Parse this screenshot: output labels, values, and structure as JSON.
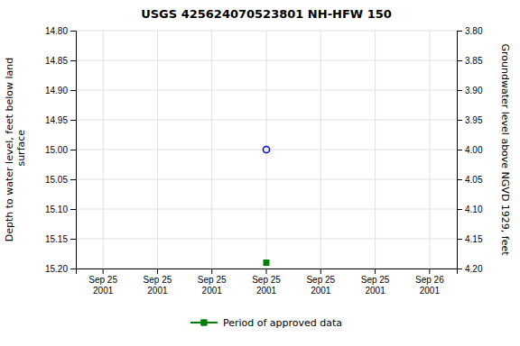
{
  "chart_data": {
    "type": "scatter",
    "title": "USGS 425624070523801 NH-HFW  150",
    "y_label": "Depth to water level, feet below land\n surface",
    "y2_label": "Groundwater level above NGVD 1929, feet",
    "categories": [
      "Sep 25\n2001",
      "Sep 25\n2001",
      "Sep 25\n2001",
      "Sep 25\n2001",
      "Sep 25\n2001",
      "Sep 25\n2001",
      "Sep 26\n2001"
    ],
    "series": [
      {
        "color": "#0000cc",
        "marker": "circle-open",
        "values": [
          null,
          null,
          null,
          15.0,
          null,
          null,
          null
        ]
      },
      {
        "name": "Period of approved data",
        "color": "#008000",
        "marker": "square",
        "values": [
          null,
          null,
          null,
          15.19,
          null,
          null,
          null
        ]
      }
    ],
    "ylim": [
      15.2,
      14.8
    ],
    "yticks": [
      {
        "value": 14.8,
        "label": "14.80"
      },
      {
        "value": 14.85,
        "label": "14.85"
      },
      {
        "value": 14.9,
        "label": "14.90"
      },
      {
        "value": 14.95,
        "label": "14.95"
      },
      {
        "value": 15.0,
        "label": "15.00"
      },
      {
        "value": 15.05,
        "label": "15.05"
      },
      {
        "value": 15.1,
        "label": "15.10"
      },
      {
        "value": 15.15,
        "label": "15.15"
      },
      {
        "value": 15.2,
        "label": "15.20"
      }
    ],
    "y2lim": [
      4.2,
      3.8
    ],
    "y2ticks": [
      {
        "value": 3.8,
        "label": "3.80"
      },
      {
        "value": 3.85,
        "label": "3.85"
      },
      {
        "value": 3.9,
        "label": "3.90"
      },
      {
        "value": 3.95,
        "label": "3.95"
      },
      {
        "value": 4.0,
        "label": "4.00"
      },
      {
        "value": 4.05,
        "label": "4.05"
      },
      {
        "value": 4.1,
        "label": "4.10"
      },
      {
        "value": 4.15,
        "label": "4.15"
      },
      {
        "value": 4.2,
        "label": "4.20"
      }
    ],
    "grid": true,
    "legend": "bottom"
  }
}
